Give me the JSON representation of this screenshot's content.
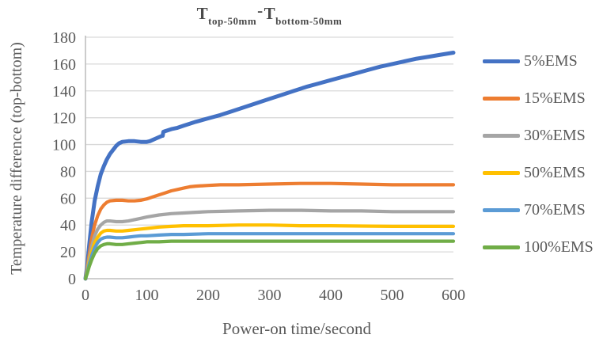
{
  "chart_data": {
    "type": "line",
    "title_text": "T_top-50mm - T_bottom-50mm",
    "title_parts": {
      "t1": "T",
      "sub1": "top-50mm",
      "separator": "-",
      "t2": "T",
      "sub2": "bottom-50mm"
    },
    "xlabel": "Power-on time/second",
    "ylabel": "Temperature difference (top-bottom)",
    "xlim": [
      0,
      600
    ],
    "ylim": [
      0,
      180
    ],
    "x_ticks": [
      0,
      100,
      200,
      300,
      400,
      500,
      600
    ],
    "y_ticks": [
      0,
      20,
      40,
      60,
      80,
      100,
      120,
      140,
      160,
      180
    ],
    "grid": "horizontal-only",
    "grid_color": "#d9d9d9",
    "axis_color": "#bfbfbf",
    "text_color": "#595959",
    "legend_position": "right",
    "series": [
      {
        "name": "5%EMS",
        "color": "#4472c4",
        "points": [
          [
            0,
            0
          ],
          [
            3,
            10
          ],
          [
            6,
            25
          ],
          [
            10,
            42
          ],
          [
            15,
            58
          ],
          [
            20,
            69
          ],
          [
            25,
            78
          ],
          [
            30,
            84
          ],
          [
            35,
            89
          ],
          [
            40,
            93
          ],
          [
            45,
            96
          ],
          [
            50,
            99
          ],
          [
            55,
            101
          ],
          [
            60,
            102
          ],
          [
            70,
            102.5
          ],
          [
            80,
            102.5
          ],
          [
            90,
            102
          ],
          [
            100,
            102
          ],
          [
            105,
            102.5
          ],
          [
            110,
            103.5
          ],
          [
            115,
            104.5
          ],
          [
            120,
            105.5
          ],
          [
            125,
            106.5
          ],
          [
            126,
            106.5
          ],
          [
            127,
            109.5
          ],
          [
            130,
            110
          ],
          [
            140,
            111.5
          ],
          [
            150,
            112.5
          ],
          [
            160,
            114
          ],
          [
            170,
            115.5
          ],
          [
            180,
            117
          ],
          [
            200,
            119.5
          ],
          [
            220,
            122
          ],
          [
            240,
            125
          ],
          [
            260,
            128
          ],
          [
            280,
            131
          ],
          [
            300,
            134
          ],
          [
            320,
            137
          ],
          [
            340,
            140
          ],
          [
            360,
            143
          ],
          [
            380,
            145.5
          ],
          [
            400,
            148
          ],
          [
            420,
            150.5
          ],
          [
            440,
            153
          ],
          [
            460,
            155.5
          ],
          [
            480,
            158
          ],
          [
            500,
            160
          ],
          [
            520,
            162
          ],
          [
            540,
            164
          ],
          [
            560,
            165.5
          ],
          [
            580,
            167
          ],
          [
            600,
            168.5
          ]
        ]
      },
      {
        "name": "15%EMS",
        "color": "#ed7d31",
        "points": [
          [
            0,
            0
          ],
          [
            3,
            8
          ],
          [
            6,
            18
          ],
          [
            10,
            30
          ],
          [
            15,
            40
          ],
          [
            20,
            47
          ],
          [
            25,
            52
          ],
          [
            30,
            55
          ],
          [
            35,
            57
          ],
          [
            40,
            58
          ],
          [
            50,
            58.5
          ],
          [
            60,
            58.5
          ],
          [
            70,
            58
          ],
          [
            80,
            58
          ],
          [
            90,
            58.5
          ],
          [
            100,
            59.5
          ],
          [
            110,
            61
          ],
          [
            120,
            62.5
          ],
          [
            130,
            64
          ],
          [
            140,
            65.5
          ],
          [
            150,
            66.5
          ],
          [
            160,
            67.5
          ],
          [
            170,
            68.5
          ],
          [
            180,
            69
          ],
          [
            200,
            69.5
          ],
          [
            220,
            70
          ],
          [
            250,
            70
          ],
          [
            300,
            70.5
          ],
          [
            350,
            71
          ],
          [
            400,
            71
          ],
          [
            450,
            70.5
          ],
          [
            500,
            70
          ],
          [
            550,
            70
          ],
          [
            600,
            70
          ]
        ]
      },
      {
        "name": "30%EMS",
        "color": "#a5a5a5",
        "points": [
          [
            0,
            0
          ],
          [
            3,
            7
          ],
          [
            6,
            15
          ],
          [
            10,
            24
          ],
          [
            15,
            32
          ],
          [
            20,
            37
          ],
          [
            25,
            40
          ],
          [
            30,
            42
          ],
          [
            35,
            43
          ],
          [
            40,
            43
          ],
          [
            50,
            42.5
          ],
          [
            60,
            42.5
          ],
          [
            70,
            43
          ],
          [
            80,
            44
          ],
          [
            90,
            45
          ],
          [
            100,
            46
          ],
          [
            120,
            47.5
          ],
          [
            140,
            48.5
          ],
          [
            160,
            49
          ],
          [
            180,
            49.5
          ],
          [
            200,
            50
          ],
          [
            250,
            50.5
          ],
          [
            300,
            51
          ],
          [
            350,
            51
          ],
          [
            400,
            50.5
          ],
          [
            450,
            50.5
          ],
          [
            500,
            50
          ],
          [
            550,
            50
          ],
          [
            600,
            50
          ]
        ]
      },
      {
        "name": "50%EMS",
        "color": "#ffc000",
        "points": [
          [
            0,
            0
          ],
          [
            3,
            6
          ],
          [
            6,
            13
          ],
          [
            10,
            20
          ],
          [
            15,
            27
          ],
          [
            20,
            31
          ],
          [
            25,
            34
          ],
          [
            30,
            35.5
          ],
          [
            35,
            36
          ],
          [
            40,
            36
          ],
          [
            50,
            35.5
          ],
          [
            60,
            35.5
          ],
          [
            70,
            36
          ],
          [
            80,
            36.5
          ],
          [
            90,
            37
          ],
          [
            100,
            37.5
          ],
          [
            120,
            38.5
          ],
          [
            140,
            39
          ],
          [
            160,
            39.5
          ],
          [
            200,
            39.5
          ],
          [
            250,
            40
          ],
          [
            300,
            40
          ],
          [
            350,
            39.5
          ],
          [
            400,
            39.5
          ],
          [
            500,
            39
          ],
          [
            600,
            39
          ]
        ]
      },
      {
        "name": "70%EMS",
        "color": "#5b9bd5",
        "points": [
          [
            0,
            0
          ],
          [
            3,
            5
          ],
          [
            6,
            11
          ],
          [
            10,
            17
          ],
          [
            15,
            23
          ],
          [
            20,
            27
          ],
          [
            25,
            29.5
          ],
          [
            30,
            30.5
          ],
          [
            35,
            31
          ],
          [
            40,
            31
          ],
          [
            50,
            30.5
          ],
          [
            60,
            30.5
          ],
          [
            70,
            31
          ],
          [
            80,
            31.5
          ],
          [
            90,
            32
          ],
          [
            100,
            32
          ],
          [
            120,
            32.5
          ],
          [
            140,
            33
          ],
          [
            160,
            33
          ],
          [
            200,
            33.5
          ],
          [
            300,
            33.5
          ],
          [
            400,
            33.5
          ],
          [
            500,
            33.5
          ],
          [
            600,
            33.5
          ]
        ]
      },
      {
        "name": "100%EMS",
        "color": "#70ad47",
        "points": [
          [
            0,
            0
          ],
          [
            3,
            4
          ],
          [
            6,
            9
          ],
          [
            10,
            14
          ],
          [
            15,
            19
          ],
          [
            20,
            22.5
          ],
          [
            25,
            24.5
          ],
          [
            30,
            25.5
          ],
          [
            35,
            26
          ],
          [
            40,
            26
          ],
          [
            50,
            25.5
          ],
          [
            60,
            25.5
          ],
          [
            70,
            26
          ],
          [
            80,
            26.5
          ],
          [
            90,
            27
          ],
          [
            100,
            27.5
          ],
          [
            120,
            27.5
          ],
          [
            140,
            28
          ],
          [
            160,
            28
          ],
          [
            200,
            28
          ],
          [
            300,
            28
          ],
          [
            400,
            28
          ],
          [
            500,
            28
          ],
          [
            600,
            28
          ]
        ]
      }
    ]
  }
}
